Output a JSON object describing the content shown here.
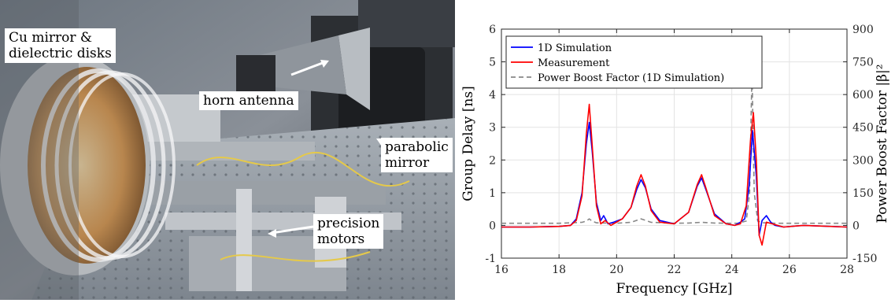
{
  "photo": {
    "labels": {
      "mirror_disks": "Cu mirror &\ndielectric disks",
      "horn_antenna": "horn antenna",
      "parabolic_mirror": "parabolic\nmirror",
      "precision_motors": "precision\nmotors"
    }
  },
  "chart_data": {
    "type": "line",
    "xlabel": "Frequency [GHz]",
    "ylabel": "Group Delay [ns]",
    "y2label": "Power Boost Factor |β|²",
    "xlim": [
      16,
      28
    ],
    "ylim": [
      -1,
      6
    ],
    "y2lim": [
      -150,
      900
    ],
    "xticks": [
      16,
      18,
      20,
      22,
      24,
      26,
      28
    ],
    "yticks": [
      -1,
      0,
      1,
      2,
      3,
      4,
      5,
      6
    ],
    "y2ticks": [
      -150,
      0,
      150,
      300,
      450,
      600,
      750,
      900
    ],
    "grid": true,
    "legend_position": "top-left",
    "series": [
      {
        "name": "1D Simulation",
        "color": "#0000ff",
        "axis": "left",
        "style": "solid",
        "x": [
          16,
          17,
          18,
          18.4,
          18.6,
          18.8,
          18.95,
          19.05,
          19.15,
          19.3,
          19.45,
          19.55,
          19.7,
          19.9,
          20.2,
          20.5,
          20.7,
          20.85,
          21.0,
          21.2,
          21.5,
          22.0,
          22.5,
          22.8,
          22.95,
          23.1,
          23.4,
          23.8,
          24.1,
          24.3,
          24.45,
          24.6,
          24.72,
          24.85,
          24.95,
          25.05,
          25.2,
          25.35,
          25.5,
          25.8,
          26.5,
          28
        ],
        "y": [
          -0.05,
          -0.05,
          -0.03,
          0.0,
          0.2,
          1.0,
          2.5,
          3.15,
          2.3,
          0.7,
          0.15,
          0.3,
          0.05,
          0.1,
          0.2,
          0.55,
          1.1,
          1.4,
          1.15,
          0.5,
          0.15,
          0.05,
          0.4,
          1.2,
          1.45,
          1.1,
          0.35,
          0.05,
          0.0,
          0.1,
          0.2,
          1.2,
          2.9,
          1.5,
          -0.3,
          0.15,
          0.3,
          0.1,
          0.0,
          -0.05,
          0.0,
          -0.05
        ]
      },
      {
        "name": "Measurement",
        "color": "#ff0000",
        "axis": "left",
        "style": "solid",
        "x": [
          16,
          17,
          18,
          18.4,
          18.6,
          18.8,
          18.95,
          19.05,
          19.15,
          19.3,
          19.45,
          19.6,
          19.8,
          20.2,
          20.5,
          20.7,
          20.85,
          21.0,
          21.2,
          21.5,
          22.0,
          22.5,
          22.8,
          22.95,
          23.1,
          23.4,
          23.8,
          24.1,
          24.3,
          24.5,
          24.65,
          24.75,
          24.85,
          24.95,
          25.05,
          25.2,
          25.4,
          25.8,
          26.5,
          28
        ],
        "y": [
          -0.05,
          -0.05,
          -0.03,
          0.0,
          0.15,
          0.9,
          2.8,
          3.7,
          2.5,
          0.6,
          0.05,
          0.15,
          0.0,
          0.2,
          0.55,
          1.2,
          1.55,
          1.2,
          0.45,
          0.1,
          0.05,
          0.4,
          1.25,
          1.55,
          1.15,
          0.3,
          0.05,
          0.0,
          0.05,
          0.6,
          2.6,
          3.45,
          2.0,
          -0.3,
          -0.6,
          0.1,
          0.05,
          -0.05,
          0.0,
          -0.05
        ]
      },
      {
        "name": "Power Boost Factor (1D Simulation)",
        "color": "#888888",
        "axis": "right",
        "style": "dashed",
        "x": [
          16,
          18,
          18.8,
          18.95,
          19.05,
          19.15,
          19.3,
          20.0,
          20.5,
          20.85,
          21.2,
          22.0,
          22.5,
          22.95,
          23.4,
          24.2,
          24.5,
          24.62,
          24.7,
          24.78,
          24.9,
          25.1,
          25.5,
          28
        ],
        "y": [
          10,
          10,
          14,
          20,
          30,
          20,
          12,
          10,
          14,
          30,
          14,
          10,
          11,
          14,
          11,
          10,
          20,
          150,
          700,
          150,
          20,
          12,
          10,
          10
        ]
      }
    ]
  }
}
